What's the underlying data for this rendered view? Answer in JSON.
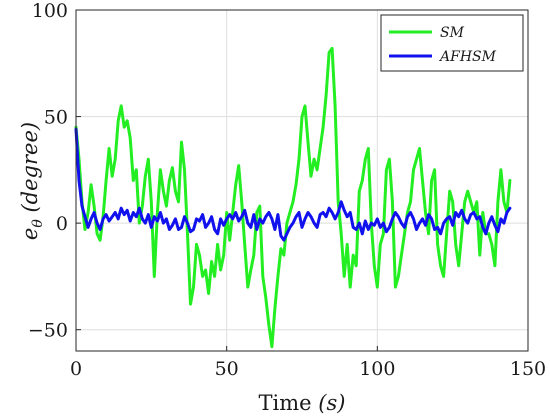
{
  "chart_data": {
    "type": "line",
    "title": "",
    "xlabel": "Time (s)",
    "ylabel": "e_θ (degree)",
    "ylabel_main": "e",
    "ylabel_sub": "θ",
    "ylabel_paren": "(degree)",
    "xlabel_main": "Time",
    "xlabel_paren": "(s)",
    "xlim": [
      0,
      150
    ],
    "ylim": [
      -60,
      100
    ],
    "xticks": [
      0,
      50,
      100,
      150
    ],
    "yticks": [
      -50,
      0,
      50,
      100
    ],
    "grid": true,
    "legend_position": "top-right",
    "series": [
      {
        "name": "SM",
        "color": "#22ee22",
        "x": [
          0,
          1,
          2,
          3,
          4,
          5,
          6,
          7,
          8,
          9,
          10,
          11,
          12,
          13,
          14,
          15,
          16,
          17,
          18,
          19,
          20,
          21,
          22,
          23,
          24,
          25,
          26,
          27,
          28,
          29,
          30,
          31,
          32,
          33,
          34,
          35,
          36,
          37,
          38,
          39,
          40,
          41,
          42,
          43,
          44,
          45,
          46,
          47,
          48,
          49,
          50,
          51,
          52,
          53,
          54,
          55,
          56,
          57,
          58,
          59,
          60,
          61,
          62,
          63,
          64,
          65,
          66,
          67,
          68,
          69,
          70,
          71,
          72,
          73,
          74,
          75,
          76,
          77,
          78,
          79,
          80,
          81,
          82,
          83,
          84,
          85,
          86,
          87,
          88,
          89,
          90,
          91,
          92,
          93,
          94,
          95,
          96,
          97,
          98,
          99,
          100,
          101,
          102,
          103,
          104,
          105,
          106,
          107,
          108,
          109,
          110,
          111,
          112,
          113,
          114,
          115,
          116,
          117,
          118,
          119,
          120,
          121,
          122,
          123,
          124,
          125,
          126,
          127,
          128,
          129,
          130,
          131,
          132,
          133,
          134,
          135,
          136,
          137,
          138,
          139,
          140,
          141,
          142,
          143,
          144
        ],
        "y": [
          45,
          30,
          10,
          -3,
          5,
          18,
          8,
          -5,
          -8,
          3,
          20,
          35,
          22,
          30,
          48,
          55,
          45,
          48,
          40,
          20,
          25,
          0,
          8,
          22,
          30,
          10,
          -25,
          5,
          25,
          15,
          8,
          20,
          26,
          15,
          10,
          38,
          25,
          -5,
          -38,
          -30,
          -10,
          -15,
          -25,
          -22,
          -33,
          -18,
          -25,
          -10,
          -22,
          -15,
          5,
          -8,
          5,
          18,
          27,
          10,
          -10,
          -30,
          -22,
          -15,
          5,
          8,
          -25,
          -35,
          -48,
          -58,
          -40,
          -25,
          -12,
          -15,
          0,
          5,
          10,
          18,
          30,
          50,
          55,
          38,
          22,
          30,
          25,
          35,
          45,
          60,
          80,
          82,
          55,
          10,
          -5,
          -25,
          -10,
          -30,
          -15,
          -20,
          15,
          20,
          30,
          35,
          0,
          -20,
          -30,
          -10,
          -5,
          25,
          30,
          10,
          -30,
          -25,
          -15,
          -5,
          5,
          10,
          25,
          30,
          35,
          20,
          5,
          -5,
          20,
          25,
          -10,
          -20,
          -25,
          -5,
          15,
          10,
          -10,
          -20,
          -5,
          10,
          15,
          10,
          5,
          10,
          -15,
          5,
          -5,
          -5,
          -10,
          -20,
          10,
          25,
          10,
          5,
          20
        ]
      },
      {
        "name": "AFHSM",
        "color": "#1111ee",
        "x": [
          0,
          1,
          2,
          3,
          4,
          5,
          6,
          7,
          8,
          9,
          10,
          11,
          12,
          13,
          14,
          15,
          16,
          17,
          18,
          19,
          20,
          21,
          22,
          23,
          24,
          25,
          26,
          27,
          28,
          29,
          30,
          31,
          32,
          33,
          34,
          35,
          36,
          37,
          38,
          39,
          40,
          41,
          42,
          43,
          44,
          45,
          46,
          47,
          48,
          49,
          50,
          51,
          52,
          53,
          54,
          55,
          56,
          57,
          58,
          59,
          60,
          61,
          62,
          63,
          64,
          65,
          66,
          67,
          68,
          69,
          70,
          71,
          72,
          73,
          74,
          75,
          76,
          77,
          78,
          79,
          80,
          81,
          82,
          83,
          84,
          85,
          86,
          87,
          88,
          89,
          90,
          91,
          92,
          93,
          94,
          95,
          96,
          97,
          98,
          99,
          100,
          101,
          102,
          103,
          104,
          105,
          106,
          107,
          108,
          109,
          110,
          111,
          112,
          113,
          114,
          115,
          116,
          117,
          118,
          119,
          120,
          121,
          122,
          123,
          124,
          125,
          126,
          127,
          128,
          129,
          130,
          131,
          132,
          133,
          134,
          135,
          136,
          137,
          138,
          139,
          140,
          141,
          142,
          143,
          144
        ],
        "y": [
          44,
          20,
          8,
          3,
          -2,
          2,
          5,
          0,
          -3,
          2,
          4,
          1,
          3,
          5,
          2,
          7,
          4,
          6,
          1,
          5,
          3,
          7,
          2,
          0,
          4,
          -2,
          3,
          1,
          5,
          0,
          2,
          -3,
          -1,
          2,
          -3,
          -2,
          3,
          0,
          -4,
          -3,
          2,
          1,
          4,
          -2,
          0,
          3,
          -3,
          -5,
          2,
          -1,
          2,
          4,
          2,
          5,
          1,
          3,
          6,
          0,
          -2,
          4,
          -3,
          2,
          0,
          3,
          5,
          2,
          -3,
          4,
          -6,
          -8,
          -5,
          -2,
          0,
          3,
          5,
          -2,
          2,
          5,
          3,
          0,
          -2,
          4,
          5,
          3,
          7,
          5,
          2,
          5,
          10,
          6,
          3,
          5,
          -2,
          -3,
          0,
          -5,
          1,
          -3,
          0,
          -1,
          2,
          -2,
          0,
          -4,
          -2,
          2,
          5,
          3,
          0,
          -2,
          3,
          5,
          2,
          -3,
          0,
          2,
          -1,
          4,
          2,
          -3,
          -2,
          -5,
          0,
          2,
          3,
          -1,
          5,
          3,
          6,
          2,
          0,
          4,
          5,
          2,
          3,
          -2,
          -5,
          0,
          3,
          -1,
          -4,
          2,
          0,
          5,
          7
        ]
      }
    ]
  }
}
